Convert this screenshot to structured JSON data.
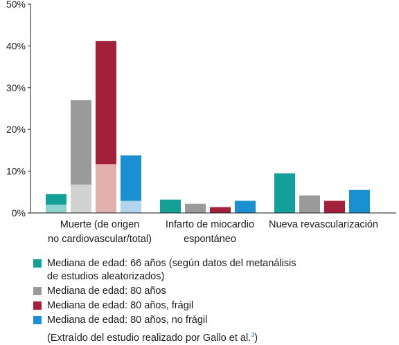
{
  "chart_data": {
    "type": "bar",
    "ylim": [
      0,
      50
    ],
    "yticks": [
      0,
      10,
      20,
      30,
      40,
      50
    ],
    "ytick_labels": [
      "0%",
      "10%",
      "20%",
      "30%",
      "40%",
      "50%"
    ],
    "grid": false,
    "categories": [
      "Muerte (de origen\nno cardiovascular/total)",
      "Infarto de miocardio\nespontáneo",
      "Nueva revascularización"
    ],
    "series": [
      {
        "name": "Mediana de edad: 66 años (según datos del metanálisis\nde estudios aleatorizados)",
        "values": [
          4.5,
          3.2,
          9.5
        ],
        "inner_values": [
          2.0,
          null,
          null
        ],
        "color": "#13a099",
        "inner_color": "#8fd3cf"
      },
      {
        "name": "Mediana de edad: 80 años",
        "values": [
          27.0,
          2.2,
          4.2
        ],
        "inner_values": [
          6.8,
          null,
          null
        ],
        "color": "#9a9a9b",
        "inner_color": "#d2d2d3"
      },
      {
        "name": "Mediana de edad: 80 años, frágil",
        "values": [
          41.2,
          1.4,
          2.9
        ],
        "inner_values": [
          11.7,
          null,
          null
        ],
        "color": "#a3203a",
        "inner_color": "#e2b1ad"
      },
      {
        "name": "Mediana de edad: 80 años, no frágil",
        "values": [
          13.8,
          2.9,
          5.5
        ],
        "inner_values": [
          2.9,
          null,
          null
        ],
        "color": "#1a8fd1",
        "inner_color": "#b2d4ef"
      }
    ]
  },
  "note": {
    "text": "(Extraído del estudio realizado por Gallo et al.",
    "superscript": "3",
    "close": ")"
  }
}
